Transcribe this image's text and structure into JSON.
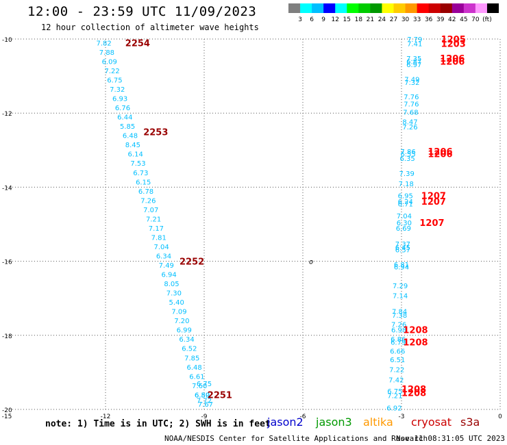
{
  "title": "12:00 - 23:59 UTC 11/09/2023",
  "subtitle": "12 hour collection of altimeter wave heights",
  "legend": {
    "colors": [
      "#7f7f7f",
      "#00ffff",
      "#00bfff",
      "#0000ff",
      "#00ffff",
      "#00ff00",
      "#00cc00",
      "#009900",
      "#ffff00",
      "#ffcc00",
      "#ff9900",
      "#ff0000",
      "#cc0000",
      "#990000",
      "#990099",
      "#cc33cc",
      "#ff99ff",
      "#000000"
    ],
    "labels": [
      "3",
      "6",
      "9",
      "12",
      "15",
      "18",
      "21",
      "24",
      "27",
      "30",
      "33",
      "36",
      "39",
      "42",
      "45",
      "70",
      "(ft)"
    ]
  },
  "note": "note: 1) Time is in UTC; 2) SWH is in feet",
  "satellites": [
    {
      "name": "jason2",
      "color": "#0000cc"
    },
    {
      "name": "jason3",
      "color": "#009900"
    },
    {
      "name": "altika",
      "color": "#ff9900"
    },
    {
      "name": "cryosat",
      "color": "#cc0000"
    },
    {
      "name": "s3a",
      "color": "#990000"
    }
  ],
  "credit": "NOAA/NESDIS Center for Satellite Applications and Research",
  "timestamp": "Nov 11 08:31:05 UTC 2023",
  "chart_data": {
    "type": "scatter",
    "xlim": [
      -15,
      0
    ],
    "ylim": [
      -20,
      -10
    ],
    "x_ticks": [
      -15,
      -12,
      -9,
      -6,
      -3,
      0
    ],
    "y_ticks": [
      -10,
      -12,
      -14,
      -16,
      -18,
      -20
    ],
    "grid": true,
    "track_label_color": "#00bfff",
    "time_label_colors": {
      "dark": "#990000",
      "red": "#ff0000"
    },
    "track_left": {
      "values": [
        "7.82",
        "7.88",
        "6.09",
        "7.22",
        "6.75",
        "7.32",
        "6.93",
        "6.76",
        "6.44",
        "5.85",
        "6.48",
        "8.45",
        "6.14",
        "7.53",
        "6.73",
        "6.15",
        "6.78",
        "7.26",
        "7.07",
        "7.21",
        "7.17",
        "7.81",
        "7.04",
        "6.34",
        "7.49",
        "6.94",
        "8.05",
        "7.30",
        "5.40",
        "7.09",
        "7.20",
        "6.99",
        "6.34",
        "6.52",
        "7.85",
        "6.48",
        "6.61",
        "7.60",
        "6.59",
        "7.72",
        "7.67",
        "6.75",
        "6.80"
      ],
      "points": [
        {
          "x": -12.05,
          "y": -10.1
        },
        {
          "x": -11.96,
          "y": -10.35
        },
        {
          "x": -11.88,
          "y": -10.6
        },
        {
          "x": -11.8,
          "y": -10.85
        },
        {
          "x": -11.72,
          "y": -11.1
        },
        {
          "x": -11.64,
          "y": -11.35
        },
        {
          "x": -11.56,
          "y": -11.6
        },
        {
          "x": -11.48,
          "y": -11.85
        },
        {
          "x": -11.41,
          "y": -12.1
        },
        {
          "x": -11.33,
          "y": -12.35
        },
        {
          "x": -11.25,
          "y": -12.6
        },
        {
          "x": -11.17,
          "y": -12.85
        },
        {
          "x": -11.09,
          "y": -13.1
        },
        {
          "x": -11.01,
          "y": -13.35
        },
        {
          "x": -10.93,
          "y": -13.6
        },
        {
          "x": -10.85,
          "y": -13.85
        },
        {
          "x": -10.77,
          "y": -14.1
        },
        {
          "x": -10.7,
          "y": -14.35
        },
        {
          "x": -10.62,
          "y": -14.6
        },
        {
          "x": -10.54,
          "y": -14.85
        },
        {
          "x": -10.46,
          "y": -15.1
        },
        {
          "x": -10.38,
          "y": -15.35
        },
        {
          "x": -10.3,
          "y": -15.6
        },
        {
          "x": -10.23,
          "y": -15.85
        },
        {
          "x": -10.15,
          "y": -16.1
        },
        {
          "x": -10.07,
          "y": -16.35
        },
        {
          "x": -9.99,
          "y": -16.6
        },
        {
          "x": -9.92,
          "y": -16.85
        },
        {
          "x": -9.84,
          "y": -17.1
        },
        {
          "x": -9.76,
          "y": -17.35
        },
        {
          "x": -9.68,
          "y": -17.6
        },
        {
          "x": -9.61,
          "y": -17.85
        },
        {
          "x": -9.53,
          "y": -18.1
        },
        {
          "x": -9.45,
          "y": -18.35
        },
        {
          "x": -9.37,
          "y": -18.6
        },
        {
          "x": -9.3,
          "y": -18.85
        },
        {
          "x": -9.22,
          "y": -19.1
        },
        {
          "x": -9.14,
          "y": -19.35
        },
        {
          "x": -9.06,
          "y": -19.6
        },
        {
          "x": -9.0,
          "y": -19.75
        },
        {
          "x": -8.96,
          "y": -19.85
        },
        {
          "x": -9.0,
          "y": -19.3
        },
        {
          "x": -9.06,
          "y": -19.6
        }
      ]
    },
    "track_right": {
      "values": [
        "7.79",
        "7.41",
        "7.35",
        "6.87",
        "6.97",
        "7.49",
        "7.32",
        "7.76",
        "7.76",
        "7.68",
        "8.47",
        "7.26",
        "7.86",
        "6.55",
        "6.35",
        "7.39",
        "7.18",
        "6.95",
        "6.24",
        "6.71",
        "7.04",
        "6.30",
        "6.69",
        "7.37",
        "6.45",
        "6.57",
        "6.81",
        "6.94",
        "7.29",
        "7.14",
        "7.84",
        "7.38",
        "7.26",
        "6.98",
        "6.86",
        "6.79",
        "6.66",
        "6.51",
        "7.22",
        "7.42",
        "6.75",
        "7.21",
        "6.92"
      ],
      "points": [
        {
          "x": -2.6,
          "y": -10.0
        },
        {
          "x": -2.6,
          "y": -10.12
        },
        {
          "x": -2.62,
          "y": -10.52
        },
        {
          "x": -2.62,
          "y": -10.6
        },
        {
          "x": -2.62,
          "y": -10.68
        },
        {
          "x": -2.68,
          "y": -11.08
        },
        {
          "x": -2.68,
          "y": -11.16
        },
        {
          "x": -2.7,
          "y": -11.55
        },
        {
          "x": -2.7,
          "y": -11.75
        },
        {
          "x": -2.72,
          "y": -11.97
        },
        {
          "x": -2.74,
          "y": -12.23
        },
        {
          "x": -2.74,
          "y": -12.37
        },
        {
          "x": -2.8,
          "y": -13.03
        },
        {
          "x": -2.8,
          "y": -13.1
        },
        {
          "x": -2.82,
          "y": -13.22
        },
        {
          "x": -2.84,
          "y": -13.62
        },
        {
          "x": -2.86,
          "y": -13.9
        },
        {
          "x": -2.88,
          "y": -14.22
        },
        {
          "x": -2.88,
          "y": -14.38
        },
        {
          "x": -2.88,
          "y": -14.45
        },
        {
          "x": -2.92,
          "y": -14.77
        },
        {
          "x": -2.92,
          "y": -14.95
        },
        {
          "x": -2.94,
          "y": -15.1
        },
        {
          "x": -2.96,
          "y": -15.53
        },
        {
          "x": -2.96,
          "y": -15.62
        },
        {
          "x": -2.96,
          "y": -15.68
        },
        {
          "x": -3.0,
          "y": -16.08
        },
        {
          "x": -3.0,
          "y": -16.15
        },
        {
          "x": -3.04,
          "y": -16.65
        },
        {
          "x": -3.04,
          "y": -16.92
        },
        {
          "x": -3.06,
          "y": -17.35
        },
        {
          "x": -3.06,
          "y": -17.45
        },
        {
          "x": -3.08,
          "y": -17.7
        },
        {
          "x": -3.08,
          "y": -17.85
        },
        {
          "x": -3.1,
          "y": -18.1
        },
        {
          "x": -3.1,
          "y": -18.18
        },
        {
          "x": -3.12,
          "y": -18.42
        },
        {
          "x": -3.12,
          "y": -18.65
        },
        {
          "x": -3.14,
          "y": -18.92
        },
        {
          "x": -3.16,
          "y": -19.2
        },
        {
          "x": -3.2,
          "y": -19.5
        },
        {
          "x": -3.2,
          "y": -19.62
        },
        {
          "x": -3.22,
          "y": -19.95
        }
      ]
    },
    "time_labels": [
      {
        "text": "2254",
        "x": -11.4,
        "y": -10.1,
        "color": "dark"
      },
      {
        "text": "2253",
        "x": -10.85,
        "y": -12.5,
        "color": "dark"
      },
      {
        "text": "2252",
        "x": -9.75,
        "y": -16.0,
        "color": "dark"
      },
      {
        "text": "2251",
        "x": -8.9,
        "y": -19.6,
        "color": "dark"
      },
      {
        "text": "1205",
        "x": -1.8,
        "y": -10.0,
        "color": "red"
      },
      {
        "text": "1203",
        "x": -1.8,
        "y": -10.12,
        "color": "red"
      },
      {
        "text": "1206",
        "x": -1.83,
        "y": -10.52,
        "color": "red"
      },
      {
        "text": "1206",
        "x": -1.83,
        "y": -10.6,
        "color": "red"
      },
      {
        "text": "1206",
        "x": -2.2,
        "y": -13.03,
        "color": "red"
      },
      {
        "text": "1206",
        "x": -2.2,
        "y": -13.1,
        "color": "red"
      },
      {
        "text": "1207",
        "x": -2.4,
        "y": -14.22,
        "color": "red"
      },
      {
        "text": "1207",
        "x": -2.4,
        "y": -14.38,
        "color": "red"
      },
      {
        "text": "1207",
        "x": -2.45,
        "y": -14.95,
        "color": "red"
      },
      {
        "text": "1208",
        "x": -2.95,
        "y": -17.85,
        "color": "red"
      },
      {
        "text": "1208",
        "x": -2.95,
        "y": -18.18,
        "color": "red"
      },
      {
        "text": "1208",
        "x": -3.0,
        "y": -19.45,
        "color": "red"
      },
      {
        "text": "1208",
        "x": -3.0,
        "y": -19.55,
        "color": "red"
      }
    ],
    "marker_symbol": "o",
    "markers": [
      {
        "x": -5.75,
        "y": -16.0
      }
    ]
  }
}
